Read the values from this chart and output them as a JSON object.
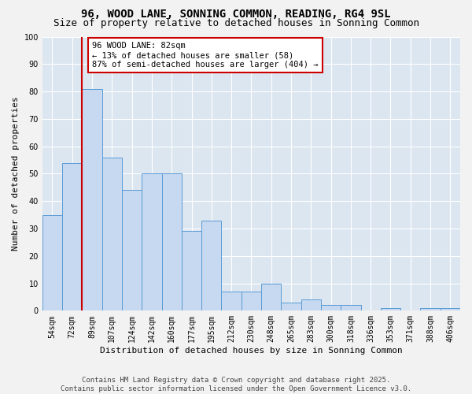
{
  "title": "96, WOOD LANE, SONNING COMMON, READING, RG4 9SL",
  "subtitle": "Size of property relative to detached houses in Sonning Common",
  "xlabel": "Distribution of detached houses by size in Sonning Common",
  "ylabel": "Number of detached properties",
  "categories": [
    "54sqm",
    "72sqm",
    "89sqm",
    "107sqm",
    "124sqm",
    "142sqm",
    "160sqm",
    "177sqm",
    "195sqm",
    "212sqm",
    "230sqm",
    "248sqm",
    "265sqm",
    "283sqm",
    "300sqm",
    "318sqm",
    "336sqm",
    "353sqm",
    "371sqm",
    "388sqm",
    "406sqm"
  ],
  "values": [
    35,
    54,
    81,
    56,
    44,
    50,
    50,
    29,
    33,
    7,
    7,
    10,
    3,
    4,
    2,
    2,
    0,
    1,
    0,
    1,
    1
  ],
  "bar_color": "#c6d9f0",
  "bar_edge_color": "#5b9bd5",
  "background_color": "#dce6f1",
  "fig_background_color": "#f2f2f2",
  "grid_color": "#ffffff",
  "vline_color": "#cc0000",
  "vline_x_index": 1.5,
  "annotation_title": "96 WOOD LANE: 82sqm",
  "annotation_line1": "← 13% of detached houses are smaller (58)",
  "annotation_line2": "87% of semi-detached houses are larger (404) →",
  "annotation_box_color": "#cc0000",
  "ylim": [
    0,
    100
  ],
  "yticks": [
    0,
    10,
    20,
    30,
    40,
    50,
    60,
    70,
    80,
    90,
    100
  ],
  "footer_line1": "Contains HM Land Registry data © Crown copyright and database right 2025.",
  "footer_line2": "Contains public sector information licensed under the Open Government Licence v3.0.",
  "title_fontsize": 10,
  "subtitle_fontsize": 9,
  "axis_label_fontsize": 8,
  "tick_fontsize": 7,
  "annotation_fontsize": 7.5,
  "footer_fontsize": 6.5
}
